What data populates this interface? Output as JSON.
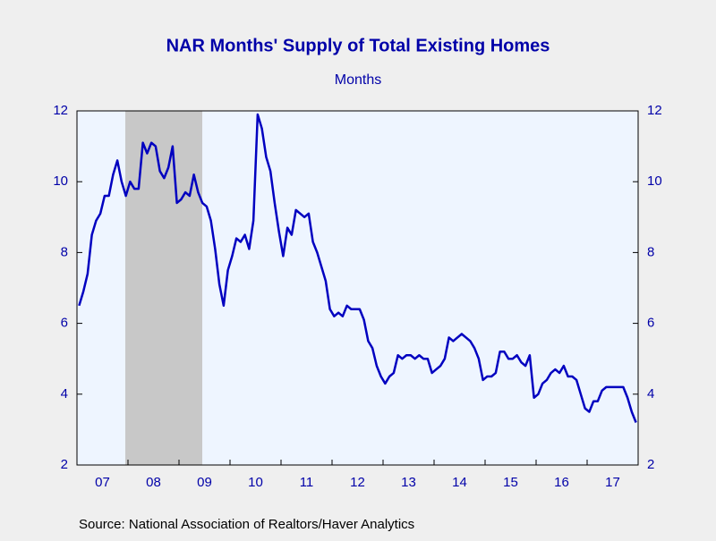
{
  "chart_data": {
    "type": "line",
    "title": "NAR Months' Supply of Total Existing Homes",
    "subtitle": "Months",
    "source": "Source:  National Association of Realtors/Haver Analytics",
    "categories": [
      null,
      null,
      null,
      null,
      null,
      null,
      "07",
      null,
      null,
      null,
      null,
      null,
      null,
      null,
      null,
      null,
      null,
      null,
      "08",
      null,
      null,
      null,
      null,
      null,
      null,
      null,
      null,
      null,
      null,
      null,
      "09",
      null,
      null,
      null,
      null,
      null,
      null,
      null,
      null,
      null,
      null,
      null,
      "10",
      null,
      null,
      null,
      null,
      null,
      null,
      null,
      null,
      null,
      null,
      null,
      "11",
      null,
      null,
      null,
      null,
      null,
      null,
      null,
      null,
      null,
      null,
      null,
      "12",
      null,
      null,
      null,
      null,
      null,
      null,
      null,
      null,
      null,
      null,
      null,
      "13",
      null,
      null,
      null,
      null,
      null,
      null,
      null,
      null,
      null,
      null,
      null,
      "14",
      null,
      null,
      null,
      null,
      null,
      null,
      null,
      null,
      null,
      null,
      null,
      "15",
      null,
      null,
      null,
      null,
      null,
      null,
      null,
      null,
      null,
      null,
      null,
      "16",
      null,
      null,
      null,
      null,
      null,
      null,
      null,
      null,
      null,
      null,
      null,
      "17",
      null,
      null,
      null,
      null,
      null
    ],
    "series": [
      {
        "name": "Months' Supply",
        "color": "#0000c0",
        "values": [
          6.5,
          6.9,
          7.4,
          8.5,
          8.9,
          9.1,
          9.6,
          9.6,
          10.2,
          10.6,
          10.0,
          9.6,
          10.0,
          9.8,
          9.8,
          11.1,
          10.8,
          11.1,
          11.0,
          10.3,
          10.1,
          10.4,
          11.0,
          9.4,
          9.5,
          9.7,
          9.6,
          10.2,
          9.7,
          9.4,
          9.3,
          8.9,
          8.1,
          7.1,
          6.5,
          7.5,
          7.9,
          8.4,
          8.3,
          8.5,
          8.1,
          8.9,
          11.9,
          11.5,
          10.7,
          10.3,
          9.4,
          8.6,
          7.9,
          8.7,
          8.5,
          9.2,
          9.1,
          9.0,
          9.1,
          8.3,
          8.0,
          7.6,
          7.2,
          6.4,
          6.2,
          6.3,
          6.2,
          6.5,
          6.4,
          6.4,
          6.4,
          6.1,
          5.5,
          5.3,
          4.8,
          4.5,
          4.3,
          4.5,
          4.6,
          5.1,
          5.0,
          5.1,
          5.1,
          5.0,
          5.1,
          5.0,
          5.0,
          4.6,
          4.7,
          4.8,
          5.0,
          5.6,
          5.5,
          5.6,
          5.7,
          5.6,
          5.5,
          5.3,
          5.0,
          4.4,
          4.5,
          4.5,
          4.6,
          5.2,
          5.2,
          5.0,
          5.0,
          5.1,
          4.9,
          4.8,
          5.1,
          3.9,
          4.0,
          4.3,
          4.4,
          4.6,
          4.7,
          4.6,
          4.8,
          4.5,
          4.5,
          4.4,
          4.0,
          3.6,
          3.5,
          3.8,
          3.8,
          4.1,
          4.2,
          4.2,
          4.2,
          4.2,
          4.2,
          3.9,
          3.5,
          3.2
        ]
      }
    ],
    "ylim": [
      2,
      12
    ],
    "yticks": [
      2,
      4,
      6,
      8,
      10,
      12
    ],
    "grid": false
  }
}
